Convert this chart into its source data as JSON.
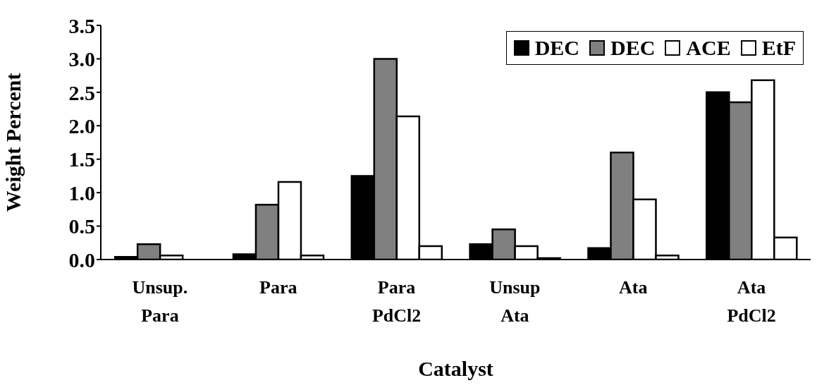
{
  "chart_data": {
    "type": "bar",
    "xlabel": "Catalyst",
    "ylabel": "Weight Percent",
    "categories": [
      "Unsup.\nPara",
      "Para",
      "Para\nPdCl2",
      "Unsup\nAta",
      "Ata",
      "Ata\nPdCl2"
    ],
    "series": [
      {
        "name": "DEC",
        "color": "#000000",
        "values": [
          0.04,
          0.08,
          1.25,
          0.23,
          0.17,
          2.5
        ]
      },
      {
        "name": "DEC",
        "color": "#808080",
        "values": [
          0.23,
          0.82,
          3.0,
          0.45,
          1.6,
          2.35
        ]
      },
      {
        "name": "ACE",
        "color": "#ffffff",
        "values": [
          0.06,
          1.16,
          2.14,
          0.2,
          0.9,
          2.68
        ]
      },
      {
        "name": "EtF",
        "color": "#ffffff",
        "values": [
          0,
          0.06,
          0.2,
          0.02,
          0.06,
          0.33
        ]
      }
    ],
    "ylim": [
      0,
      3.5
    ],
    "yticks": [
      {
        "value": 0,
        "label": "0.0"
      },
      0.5,
      {
        "value": 1,
        "label": "1.0"
      },
      1.5,
      {
        "value": 2,
        "label": "2.0"
      },
      2.5,
      {
        "value": 3,
        "label": "3.0"
      },
      3.5
    ],
    "grid": false,
    "legend": "top right"
  }
}
